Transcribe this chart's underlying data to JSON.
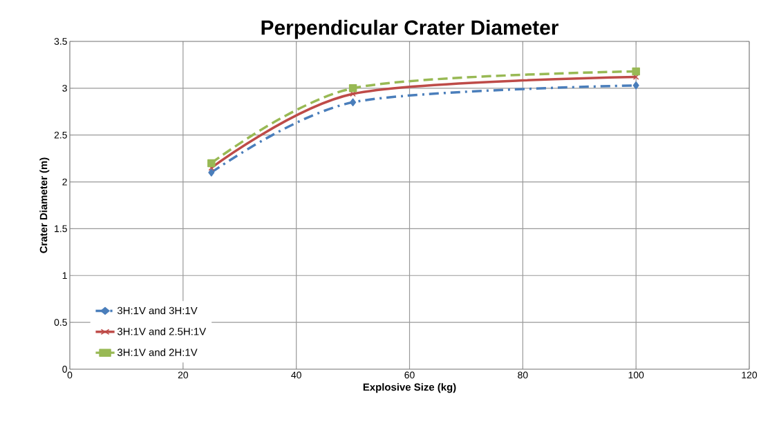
{
  "chart_data": {
    "type": "line",
    "title": "Perpendicular Crater Diameter",
    "xlabel": "Explosive Size (kg)",
    "ylabel": "Crater Diameter (m)",
    "x": [
      25,
      50,
      100
    ],
    "series": [
      {
        "name": "3H:1V and 3H:1V",
        "color": "#4a7ebb",
        "values": [
          2.1,
          2.85,
          3.03
        ],
        "marker": "diamond",
        "line_style": "dashdot"
      },
      {
        "name": "3H:1V and 2.5H:1V",
        "color": "#be4b48",
        "values": [
          2.15,
          2.94,
          3.12
        ],
        "marker": "cross",
        "line_style": "solid"
      },
      {
        "name": "3H:1V and 2H:1V",
        "color": "#98b954",
        "values": [
          2.2,
          3.0,
          3.18
        ],
        "marker": "square",
        "line_style": "dashed"
      }
    ],
    "xlim": [
      0,
      120
    ],
    "xticks": [
      0,
      20,
      40,
      60,
      80,
      100,
      120
    ],
    "ylim": [
      0,
      3.5
    ],
    "yticks": [
      0,
      0.5,
      1,
      1.5,
      2,
      2.5,
      3,
      3.5
    ],
    "grid": true,
    "legend": "bottom left"
  }
}
